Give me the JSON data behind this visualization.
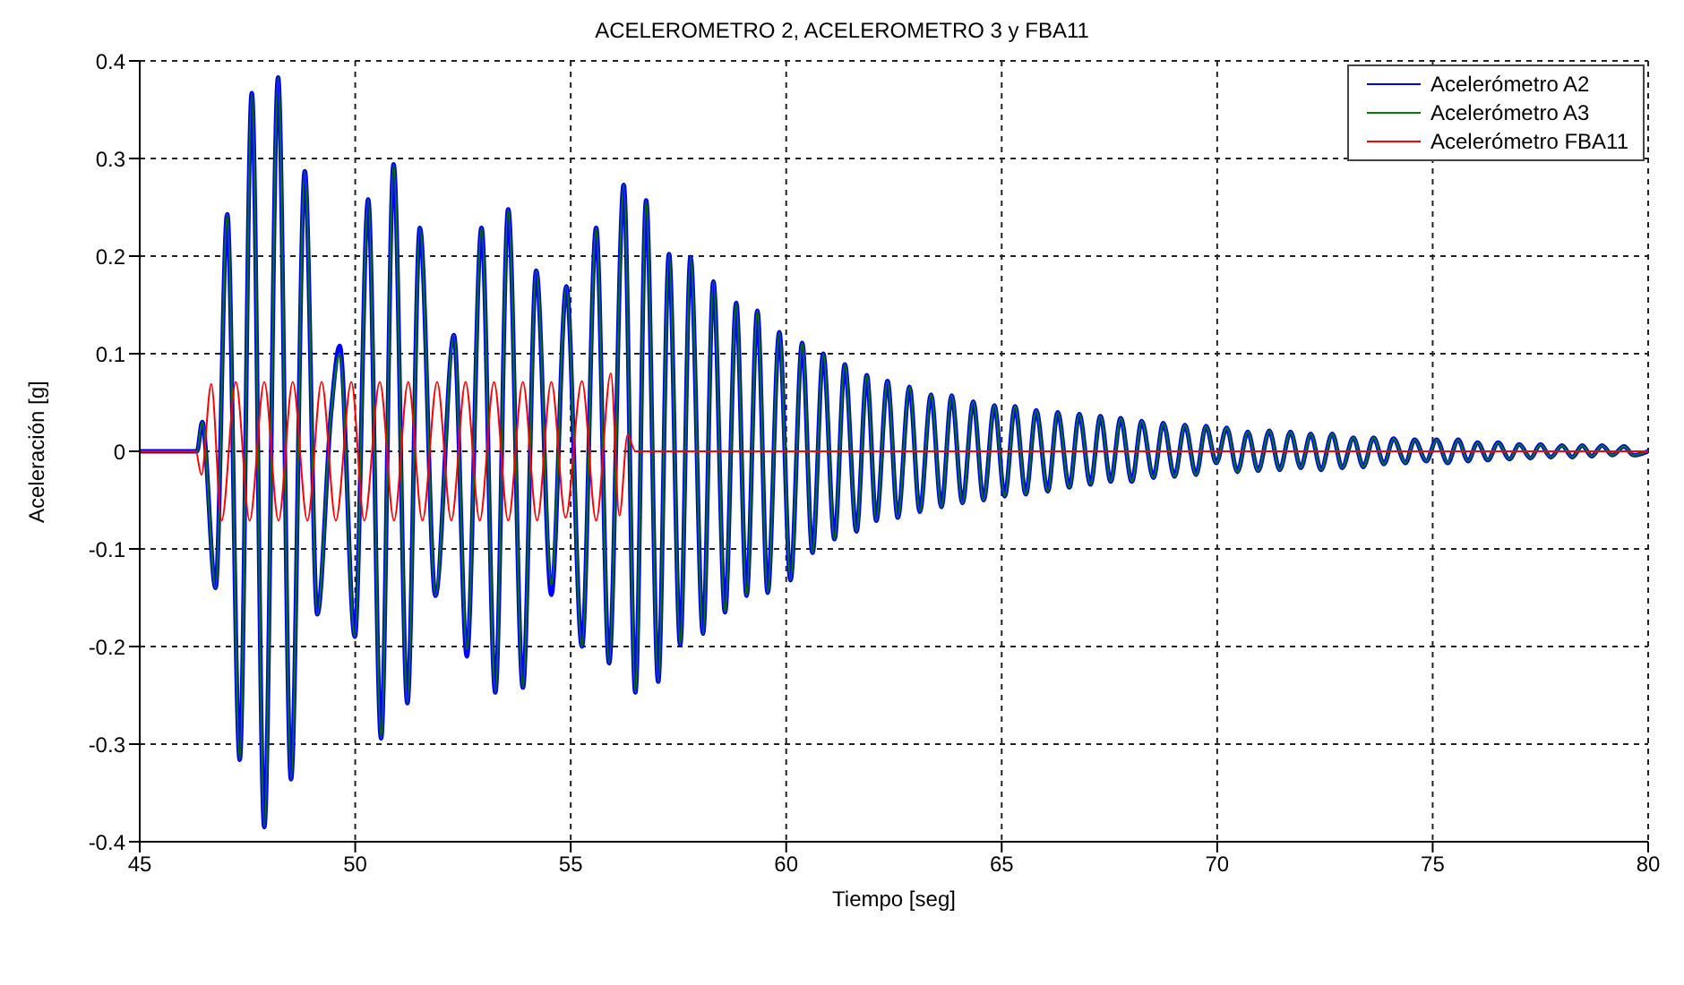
{
  "chart_data": {
    "type": "line",
    "title": "ACELEROMETRO 2, ACELEROMETRO 3 y FBA11",
    "xlabel": "Tiempo [seg]",
    "ylabel": "Aceleración [g]",
    "xlim": [
      45,
      80
    ],
    "xticks": [
      45,
      50,
      55,
      60,
      65,
      70,
      75,
      80
    ],
    "ylim": [
      -0.4,
      0.4
    ],
    "yticks": [
      -0.4,
      -0.3,
      -0.2,
      -0.1,
      0,
      0.1,
      0.2,
      0.3,
      0.4
    ],
    "grid": true,
    "legend": "top right",
    "x": [
      45,
      46.33,
      46.45,
      46.76,
      47.03,
      47.32,
      47.6,
      47.89,
      48.21,
      48.51,
      48.83,
      49.12,
      49.44,
      49.64,
      49.99,
      50.3,
      50.6,
      50.89,
      51.21,
      51.5,
      51.86,
      52.29,
      52.59,
      52.93,
      53.25,
      53.55,
      53.89,
      54.2,
      54.55,
      54.9,
      55.26,
      55.59,
      55.89,
      56.23,
      56.5,
      56.75,
      57.03,
      57.28,
      57.54,
      57.78,
      58.07,
      58.31,
      58.58,
      58.84,
      59.08,
      59.33,
      59.57,
      59.84,
      60.1,
      60.37,
      60.61,
      60.86,
      61.12,
      61.36,
      61.63,
      61.87,
      62.09,
      62.35,
      62.59,
      62.86,
      63.1,
      63.36,
      63.6,
      63.84,
      64.09,
      64.34,
      64.58,
      64.83,
      65.07,
      65.31,
      65.56,
      65.8,
      66.07,
      66.3,
      66.57,
      66.8,
      67.06,
      67.29,
      67.53,
      67.76,
      68.02,
      68.25,
      68.52,
      68.75,
      69.01,
      69.25,
      69.51,
      69.74,
      69.98,
      70.22,
      70.47,
      70.71,
      70.95,
      71.21,
      71.45,
      71.7,
      71.94,
      72.17,
      72.41,
      72.67,
      72.9,
      73.16,
      73.39,
      73.63,
      73.87,
      74.09,
      74.37,
      74.58,
      74.85,
      75.09,
      75.35,
      75.59,
      75.82,
      76.04,
      76.28,
      76.52,
      76.78,
      77.01,
      77.27,
      77.5,
      77.74,
      78,
      78.24,
      78.47,
      78.69,
      78.93,
      79.17,
      79.44,
      79.66,
      80
    ],
    "series": [
      {
        "name": "Acelerómetro A2",
        "color": "#0000ff",
        "values": [
          0,
          0,
          0.03,
          -0.14,
          0.243,
          -0.316,
          0.367,
          -0.385,
          0.383,
          -0.336,
          0.287,
          -0.167,
          0.04,
          0.108,
          -0.19,
          0.258,
          -0.294,
          0.294,
          -0.258,
          0.229,
          -0.148,
          0.119,
          -0.21,
          0.229,
          -0.247,
          0.248,
          -0.242,
          0.185,
          -0.147,
          0.169,
          -0.2,
          0.229,
          -0.217,
          0.273,
          -0.247,
          0.257,
          -0.236,
          0.202,
          -0.198,
          0.199,
          -0.187,
          0.174,
          -0.165,
          0.152,
          -0.148,
          0.144,
          -0.145,
          0.122,
          -0.132,
          0.111,
          -0.104,
          0.1,
          -0.09,
          0.089,
          -0.082,
          0.078,
          -0.071,
          0.072,
          -0.068,
          0.066,
          -0.062,
          0.058,
          -0.057,
          0.057,
          -0.053,
          0.051,
          -0.05,
          0.047,
          -0.046,
          0.046,
          -0.044,
          0.042,
          -0.041,
          0.04,
          -0.037,
          0.038,
          -0.034,
          0.036,
          -0.031,
          0.034,
          -0.031,
          0.031,
          -0.027,
          0.029,
          -0.026,
          0.027,
          -0.024,
          0.026,
          -0.012,
          0.024,
          -0.021,
          0.02,
          -0.02,
          0.021,
          -0.019,
          0.02,
          -0.017,
          0.018,
          -0.019,
          0.018,
          -0.017,
          0.014,
          -0.016,
          0.014,
          -0.013,
          0.013,
          -0.012,
          0.012,
          -0.01,
          0.012,
          -0.012,
          0.012,
          -0.01,
          0.009,
          -0.009,
          0.009,
          -0.008,
          0.007,
          -0.007,
          0.007,
          -0.006,
          0.006,
          -0.006,
          0.006,
          -0.005,
          0.006,
          -0.004,
          0.005,
          -0.004,
          0
        ]
      },
      {
        "name": "Acelerómetro A3",
        "color": "#008000",
        "values": [
          0,
          0,
          0.03,
          -0.14,
          0.243,
          -0.316,
          0.367,
          -0.385,
          0.383,
          -0.336,
          0.287,
          -0.167,
          0.04,
          0.1,
          -0.19,
          0.258,
          -0.294,
          0.294,
          -0.258,
          0.229,
          -0.148,
          0.119,
          -0.203,
          0.229,
          -0.247,
          0.248,
          -0.242,
          0.185,
          -0.137,
          0.169,
          -0.2,
          0.229,
          -0.217,
          0.273,
          -0.247,
          0.257,
          -0.236,
          0.202,
          -0.198,
          0.199,
          -0.187,
          0.174,
          -0.165,
          0.152,
          -0.148,
          0.144,
          -0.145,
          0.122,
          -0.132,
          0.111,
          -0.104,
          0.1,
          -0.09,
          0.089,
          -0.082,
          0.078,
          -0.071,
          0.072,
          -0.068,
          0.066,
          -0.062,
          0.058,
          -0.057,
          0.057,
          -0.053,
          0.051,
          -0.05,
          0.047,
          -0.046,
          0.046,
          -0.044,
          0.042,
          -0.041,
          0.04,
          -0.037,
          0.038,
          -0.034,
          0.036,
          -0.031,
          0.034,
          -0.031,
          0.031,
          -0.027,
          0.029,
          -0.026,
          0.027,
          -0.024,
          0.026,
          -0.012,
          0.024,
          -0.021,
          0.02,
          -0.02,
          0.021,
          -0.019,
          0.02,
          -0.017,
          0.018,
          -0.019,
          0.018,
          -0.017,
          0.014,
          -0.016,
          0.014,
          -0.013,
          0.013,
          -0.012,
          0.012,
          -0.01,
          0.012,
          -0.012,
          0.012,
          -0.01,
          0.009,
          -0.009,
          0.009,
          -0.008,
          0.007,
          -0.007,
          0.007,
          -0.006,
          0.006,
          -0.006,
          0.006,
          -0.005,
          0.006,
          -0.004,
          0.005,
          -0.004,
          0
        ]
      },
      {
        "name": "Acelerómetro FBA11",
        "color": "#ff0000",
        "x": [
          45,
          46.3,
          46.43,
          46.66,
          46.9,
          47.23,
          47.55,
          47.89,
          48.22,
          48.55,
          48.89,
          49.22,
          49.55,
          49.91,
          50.21,
          50.57,
          50.9,
          51.23,
          51.56,
          51.9,
          52.23,
          52.56,
          52.89,
          53.22,
          53.55,
          53.89,
          54.22,
          54.55,
          54.88,
          55.26,
          55.59,
          55.93,
          56.13,
          56.32,
          56.5,
          80
        ],
        "values": [
          0,
          0,
          -0.024,
          0.069,
          -0.071,
          0.071,
          -0.071,
          0.071,
          -0.071,
          0.071,
          -0.071,
          0.071,
          -0.071,
          0.071,
          -0.071,
          0.071,
          -0.071,
          0.071,
          -0.071,
          0.071,
          -0.071,
          0.071,
          -0.071,
          0.071,
          -0.071,
          0.071,
          -0.071,
          0.071,
          -0.068,
          0.072,
          -0.071,
          0.08,
          -0.066,
          0.017,
          0,
          0
        ]
      }
    ]
  }
}
